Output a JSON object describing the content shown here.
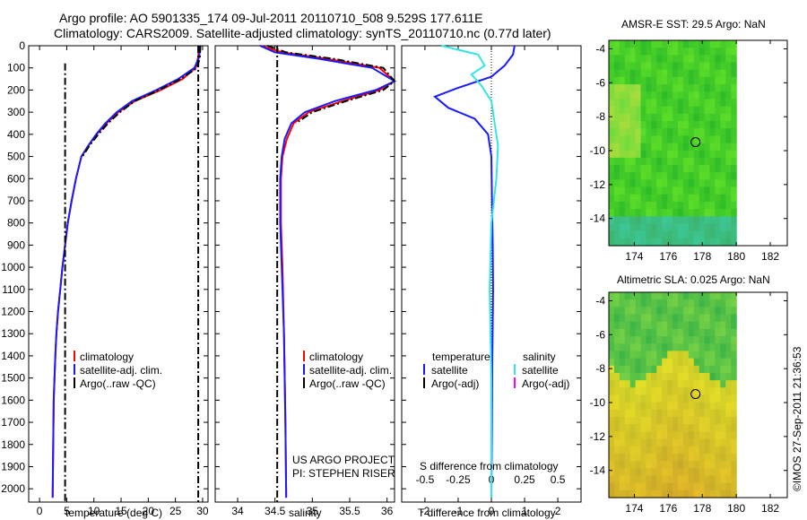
{
  "header": {
    "title_line1": "Argo profile: AO 5901335_174 09-Jul-2011 20110710_508 9.529S 177.611E",
    "title_line2": "Climatology: CARS2009. Satellite-adjusted climatology: synTS_20110710.nc (0.77d later)"
  },
  "colors": {
    "climatology": "#ff0000",
    "satellite": "#1a1aff",
    "argo": "#000000",
    "satellite_salinity": "#33e6e6",
    "argo_salinity": "#ff00ff",
    "sst_map": "#22cc22",
    "sla_map": "#e6d11a"
  },
  "chart_data": [
    {
      "type": "line",
      "panel": "temperature",
      "xlabel": "temperature (deg C)",
      "xlim": [
        -2,
        31
      ],
      "ylim": [
        2060,
        0
      ],
      "xticks": [
        0,
        5,
        10,
        15,
        20,
        25,
        30
      ],
      "yticks": [
        0,
        100,
        200,
        300,
        400,
        500,
        600,
        700,
        800,
        900,
        1000,
        1100,
        1200,
        1300,
        1400,
        1500,
        1600,
        1700,
        1800,
        1900,
        2000
      ],
      "legend": [
        "climatology",
        "satellite-adj. clim.",
        "Argo(..raw -QC)"
      ],
      "series": [
        {
          "name": "climatology",
          "x": [
            29.3,
            29.2,
            28.7,
            26.3,
            22.3,
            17.5,
            14.5,
            12.3,
            10.5,
            9.0,
            7.7,
            6.7,
            5.9,
            5.2,
            4.7,
            4.2,
            3.8,
            3.4,
            3.1,
            2.9,
            2.6,
            2.4
          ],
          "y": [
            0,
            50,
            100,
            150,
            200,
            250,
            300,
            350,
            400,
            450,
            500,
            600,
            700,
            800,
            900,
            1000,
            1100,
            1200,
            1300,
            1400,
            1600,
            2040
          ]
        },
        {
          "name": "satellite-adj. clim.",
          "x": [
            29.5,
            29.4,
            28.5,
            25.5,
            21.5,
            17.0,
            14.2,
            12.1,
            10.4,
            9.0,
            7.7,
            6.7,
            5.9,
            5.2,
            4.7,
            4.2,
            3.8,
            3.4,
            3.1,
            2.9,
            2.6,
            2.4
          ],
          "y": [
            0,
            50,
            100,
            150,
            200,
            250,
            300,
            350,
            400,
            450,
            500,
            600,
            700,
            800,
            900,
            1000,
            1100,
            1200,
            1300,
            1400,
            1600,
            2040
          ]
        },
        {
          "name": "Argo(..raw -QC)",
          "x": [
            29.6,
            29.5,
            29.0,
            26.0,
            22.0,
            17.5,
            14.8,
            12.6,
            10.8,
            9.2,
            7.9
          ],
          "y": [
            0,
            50,
            100,
            150,
            200,
            250,
            300,
            350,
            400,
            450,
            500
          ]
        }
      ]
    },
    {
      "type": "line",
      "panel": "salinity",
      "xlabel": "salinity",
      "xlim": [
        33.7,
        36.1
      ],
      "ylim": [
        2060,
        0
      ],
      "xticks": [
        34,
        34.5,
        35,
        35.5,
        36
      ],
      "legend": [
        "climatology",
        "satellite-adj. clim.",
        "Argo(..raw -QC)"
      ],
      "annotation": [
        "US ARGO PROJECT",
        "PI: STEPHEN RISER"
      ],
      "series": [
        {
          "name": "climatology",
          "x": [
            34.3,
            34.6,
            35.2,
            35.9,
            36.1,
            35.9,
            35.4,
            34.95,
            34.75,
            34.66,
            34.6,
            34.58,
            34.58,
            34.6,
            34.62,
            34.64,
            34.65
          ],
          "y": [
            0,
            30,
            60,
            100,
            160,
            200,
            250,
            300,
            350,
            420,
            500,
            600,
            800,
            1000,
            1300,
            1700,
            2040
          ]
        },
        {
          "name": "satellite-adj. clim.",
          "x": [
            34.3,
            34.5,
            35.1,
            35.8,
            36.1,
            35.85,
            35.3,
            34.9,
            34.72,
            34.63,
            34.59,
            34.57,
            34.57,
            34.59,
            34.62,
            34.64,
            34.65
          ],
          "y": [
            0,
            30,
            60,
            100,
            160,
            200,
            250,
            300,
            350,
            420,
            500,
            600,
            800,
            1000,
            1300,
            1700,
            2040
          ]
        },
        {
          "name": "Argo(..raw -QC)",
          "x": [
            34.4,
            34.65,
            35.3,
            35.95,
            36.1,
            35.95,
            35.45,
            35.0,
            34.78
          ],
          "y": [
            0,
            30,
            60,
            100,
            160,
            200,
            250,
            300,
            350
          ]
        }
      ]
    },
    {
      "type": "line",
      "panel": "differences",
      "xlabel_bottom": "T difference from climatology",
      "xlabel_top": "S difference from climatology",
      "xlim": [
        -2.7,
        2.7
      ],
      "xticks_T": [
        -2,
        -1,
        0,
        1,
        2
      ],
      "xticks_S": [
        -0.5,
        -0.25,
        0,
        0.25,
        0.5
      ],
      "xticks_S_pos": [
        -2,
        -1,
        0,
        1,
        2
      ],
      "legend": {
        "temperature_heading": "temperature",
        "salinity_heading": "salinity",
        "entries": [
          "satellite",
          "Argo(-adj)",
          "satellite",
          "Argo(-adj)"
        ]
      },
      "series": [
        {
          "name": "temperature satellite",
          "x": [
            0.7,
            0.65,
            0.4,
            0.0,
            -1.0,
            -1.7,
            -1.3,
            -0.5,
            -0.1,
            0.0,
            0.02,
            0.04,
            0.05,
            0.03,
            0.02,
            0.0
          ],
          "y": [
            0,
            40,
            90,
            140,
            190,
            230,
            280,
            330,
            400,
            500,
            700,
            900,
            1100,
            1400,
            1700,
            2040
          ]
        },
        {
          "name": "salinity satellite",
          "x": [
            -1.5,
            -0.4,
            -0.2,
            -0.6,
            -0.3,
            0.0,
            0.1,
            0.2,
            0.15,
            0.0,
            -0.05,
            0.0,
            0.0
          ],
          "y": [
            0,
            40,
            90,
            130,
            180,
            250,
            350,
            450,
            600,
            800,
            1100,
            1500,
            2040
          ]
        }
      ]
    },
    {
      "type": "heatmap",
      "panel": "sst_map",
      "title": "AMSR-E SST: 29.5 Argo: NaN",
      "xticks": [
        174,
        176,
        178,
        180,
        182
      ],
      "yticks": [
        -4,
        -6,
        -8,
        -10,
        -12,
        -14
      ],
      "xlim": [
        172.5,
        183
      ],
      "ylim": [
        -15.6,
        -3.5
      ],
      "marker": [
        177.6,
        -9.5
      ]
    },
    {
      "type": "heatmap",
      "panel": "sla_map",
      "title": "Altimetric SLA: 0.025 Argo: NaN",
      "xticks": [
        174,
        176,
        178,
        180,
        182
      ],
      "yticks": [
        -4,
        -6,
        -8,
        -10,
        -12,
        -14
      ],
      "xlim": [
        172.5,
        183
      ],
      "ylim": [
        -15.6,
        -3.5
      ],
      "marker": [
        177.6,
        -9.5
      ]
    }
  ],
  "stamp": "©IMOS 27-Sep-2011 21:36:53"
}
